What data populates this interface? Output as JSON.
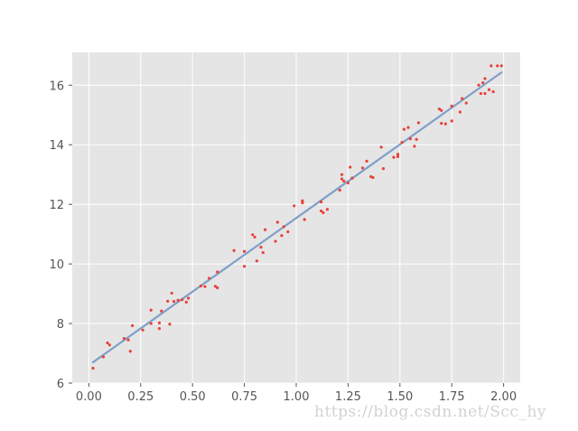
{
  "chart_data": {
    "type": "scatter",
    "title": "",
    "xlabel": "",
    "ylabel": "",
    "xlim": [
      -0.08,
      2.08
    ],
    "ylim": [
      6.0,
      17.1
    ],
    "grid": true,
    "x_ticks": [
      0.0,
      0.25,
      0.5,
      0.75,
      1.0,
      1.25,
      1.5,
      1.75,
      2.0
    ],
    "x_tick_labels": [
      "0.00",
      "0.25",
      "0.50",
      "0.75",
      "1.00",
      "1.25",
      "1.50",
      "1.75",
      "2.00"
    ],
    "y_ticks": [
      6,
      8,
      10,
      12,
      14,
      16
    ],
    "y_tick_labels": [
      "6",
      "8",
      "10",
      "12",
      "14",
      "16"
    ],
    "scatter_color": "#e8413a",
    "line_color": "#7f9fc8",
    "background_color": "#e5e5e5",
    "fit_line": {
      "x": [
        0.02,
        1.99
      ],
      "y": [
        6.7,
        16.43
      ]
    },
    "points": [
      [
        0.02,
        6.5
      ],
      [
        0.07,
        6.88
      ],
      [
        0.09,
        7.35
      ],
      [
        0.1,
        7.28
      ],
      [
        0.17,
        7.5
      ],
      [
        0.19,
        7.45
      ],
      [
        0.2,
        7.07
      ],
      [
        0.21,
        7.93
      ],
      [
        0.26,
        7.78
      ],
      [
        0.3,
        8.45
      ],
      [
        0.3,
        8.0
      ],
      [
        0.34,
        7.83
      ],
      [
        0.34,
        8.02
      ],
      [
        0.35,
        8.42
      ],
      [
        0.38,
        8.75
      ],
      [
        0.39,
        7.98
      ],
      [
        0.4,
        9.02
      ],
      [
        0.41,
        8.74
      ],
      [
        0.43,
        8.78
      ],
      [
        0.45,
        8.8
      ],
      [
        0.47,
        8.72
      ],
      [
        0.48,
        8.85
      ],
      [
        0.54,
        9.26
      ],
      [
        0.56,
        9.24
      ],
      [
        0.58,
        9.52
      ],
      [
        0.61,
        9.25
      ],
      [
        0.62,
        9.2
      ],
      [
        0.62,
        9.73
      ],
      [
        0.7,
        10.45
      ],
      [
        0.75,
        9.92
      ],
      [
        0.75,
        10.42
      ],
      [
        0.79,
        10.98
      ],
      [
        0.8,
        10.9
      ],
      [
        0.81,
        10.1
      ],
      [
        0.83,
        10.56
      ],
      [
        0.84,
        10.38
      ],
      [
        0.85,
        11.15
      ],
      [
        0.9,
        10.76
      ],
      [
        0.91,
        11.4
      ],
      [
        0.93,
        10.95
      ],
      [
        0.94,
        11.25
      ],
      [
        0.96,
        11.08
      ],
      [
        0.99,
        11.95
      ],
      [
        1.03,
        12.12
      ],
      [
        1.03,
        12.05
      ],
      [
        1.04,
        11.49
      ],
      [
        1.12,
        12.08
      ],
      [
        1.12,
        11.78
      ],
      [
        1.13,
        11.72
      ],
      [
        1.15,
        11.83
      ],
      [
        1.21,
        12.48
      ],
      [
        1.22,
        12.85
      ],
      [
        1.22,
        13.0
      ],
      [
        1.23,
        12.78
      ],
      [
        1.25,
        12.72
      ],
      [
        1.26,
        13.25
      ],
      [
        1.27,
        12.88
      ],
      [
        1.32,
        13.22
      ],
      [
        1.34,
        13.45
      ],
      [
        1.36,
        12.93
      ],
      [
        1.37,
        12.9
      ],
      [
        1.41,
        13.92
      ],
      [
        1.42,
        13.2
      ],
      [
        1.47,
        13.58
      ],
      [
        1.49,
        13.68
      ],
      [
        1.49,
        13.6
      ],
      [
        1.51,
        14.08
      ],
      [
        1.52,
        14.52
      ],
      [
        1.54,
        14.58
      ],
      [
        1.55,
        14.2
      ],
      [
        1.57,
        13.95
      ],
      [
        1.58,
        14.18
      ],
      [
        1.59,
        14.74
      ],
      [
        1.69,
        15.2
      ],
      [
        1.7,
        15.15
      ],
      [
        1.7,
        14.72
      ],
      [
        1.72,
        14.7
      ],
      [
        1.75,
        14.8
      ],
      [
        1.75,
        15.3
      ],
      [
        1.79,
        15.1
      ],
      [
        1.8,
        15.55
      ],
      [
        1.82,
        15.4
      ],
      [
        1.88,
        16.0
      ],
      [
        1.89,
        15.72
      ],
      [
        1.9,
        16.08
      ],
      [
        1.91,
        15.72
      ],
      [
        1.91,
        16.22
      ],
      [
        1.93,
        15.85
      ],
      [
        1.94,
        16.65
      ],
      [
        1.95,
        15.78
      ],
      [
        1.97,
        16.65
      ],
      [
        1.99,
        16.65
      ]
    ]
  },
  "watermark": "https://blog.csdn.net/Scc_hy"
}
